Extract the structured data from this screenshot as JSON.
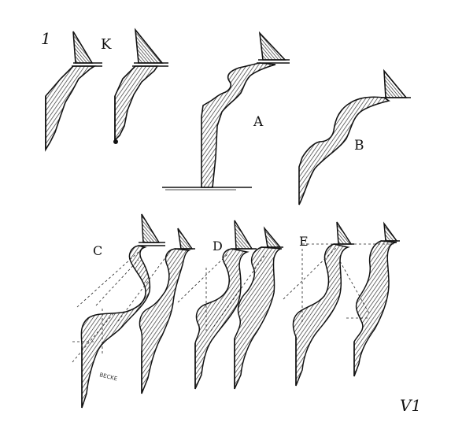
{
  "figure": {
    "background": "#ffffff",
    "ink_color": "#111111",
    "hatch_color": "#333333",
    "labels": {
      "one": "1",
      "k": "K",
      "a": "A",
      "b": "B",
      "c": "C",
      "d": "D",
      "e": "E",
      "engraver": "BECKE",
      "monogram": "V1"
    }
  }
}
